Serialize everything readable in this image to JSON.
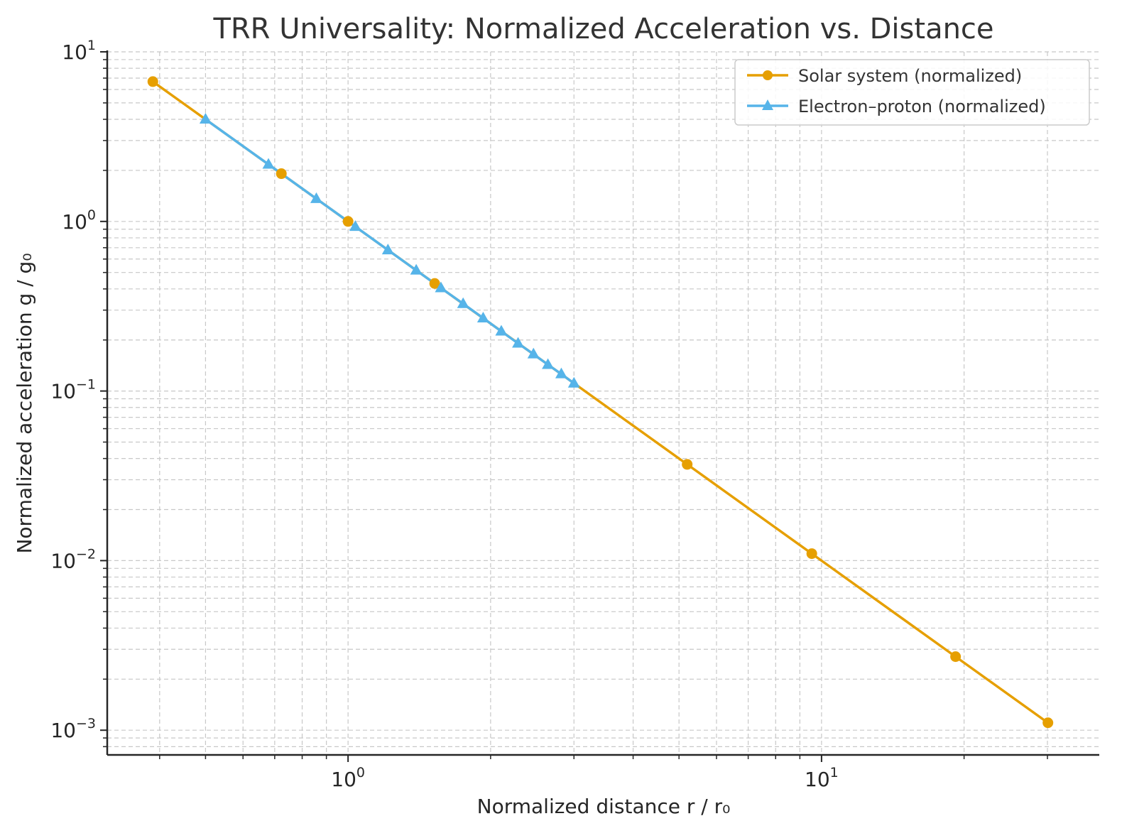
{
  "chart_data": {
    "type": "line",
    "title": "TRR Universality: Normalized Acceleration vs. Distance",
    "xlabel": "Normalized distance  r / r₀",
    "ylabel": "Normalized acceleration  g / g₀",
    "xscale": "log",
    "yscale": "log",
    "xlim": [
      0.31,
      38.6
    ],
    "ylim": [
      0.000715,
      10
    ],
    "grid": true,
    "legend_position": "top-right",
    "x_tick_labels": [
      {
        "value": 1,
        "base": "10",
        "exp": "0"
      },
      {
        "value": 10,
        "base": "10",
        "exp": "1"
      }
    ],
    "y_tick_labels": [
      {
        "value": 10,
        "base": "10",
        "exp": "1"
      },
      {
        "value": 1,
        "base": "10",
        "exp": "0"
      },
      {
        "value": 0.1,
        "base": "10",
        "exp": "−1"
      },
      {
        "value": 0.01,
        "base": "10",
        "exp": "−2"
      },
      {
        "value": 0.001,
        "base": "10",
        "exp": "−3"
      }
    ],
    "series": [
      {
        "name": "Solar system (normalized)",
        "color": "#E69F00",
        "marker": "circle",
        "x": [
          0.387,
          0.723,
          1.0,
          1.524,
          5.203,
          9.537,
          19.19,
          30.07
        ],
        "y": [
          6.677,
          1.913,
          1.0,
          0.4306,
          0.03694,
          0.01099,
          0.002715,
          0.001106
        ]
      },
      {
        "name": "Electron–proton (normalized)",
        "color": "#56B4E9",
        "marker": "triangle",
        "x": [
          0.5,
          0.679,
          0.857,
          1.036,
          1.214,
          1.393,
          1.571,
          1.75,
          1.929,
          2.107,
          2.286,
          2.464,
          2.643,
          2.821,
          3.0
        ],
        "y": [
          4.0,
          2.17,
          1.361,
          0.932,
          0.678,
          0.515,
          0.405,
          0.327,
          0.269,
          0.225,
          0.191,
          0.165,
          0.143,
          0.126,
          0.111
        ]
      }
    ]
  }
}
